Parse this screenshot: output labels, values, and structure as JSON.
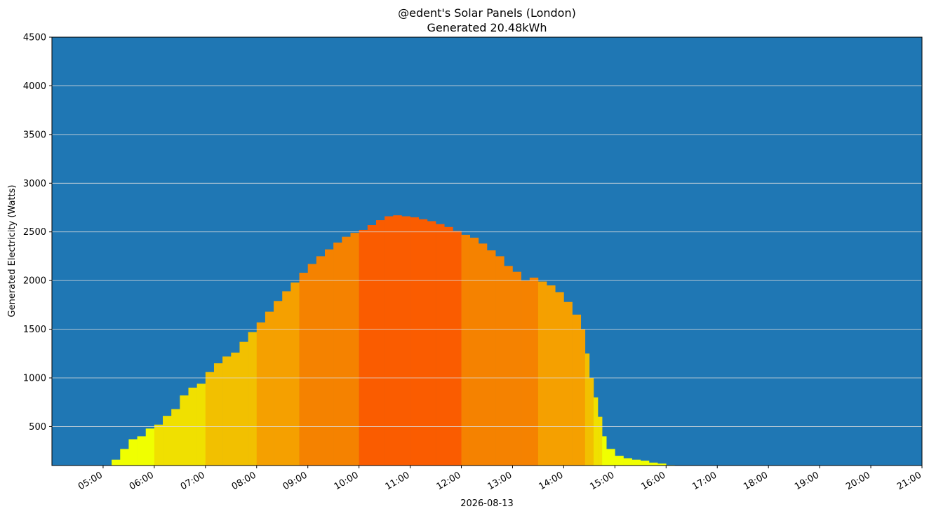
{
  "chart_data": {
    "type": "area",
    "title": "@edent's Solar Panels (London)",
    "subtitle": "Generated 20.48kWh",
    "ylabel": "Generated Electricity (Watts)",
    "xlabel": "2026-08-13",
    "ylim": [
      100,
      4500
    ],
    "xlim": [
      "04:00",
      "21:00"
    ],
    "yticks": [
      500,
      1000,
      1500,
      2000,
      2500,
      3000,
      3500,
      4000,
      4500
    ],
    "xticks": [
      "05:00",
      "06:00",
      "07:00",
      "08:00",
      "09:00",
      "10:00",
      "11:00",
      "12:00",
      "13:00",
      "14:00",
      "15:00",
      "16:00",
      "17:00",
      "18:00",
      "19:00",
      "20:00",
      "21:00"
    ],
    "grid": "horizontal",
    "background_color": "#1f77b4",
    "grid_color": "#dddddd",
    "band_colors": [
      {
        "min": 0,
        "max": 500,
        "color": "#f0ff00"
      },
      {
        "min": 500,
        "max": 1000,
        "color": "#f0e000"
      },
      {
        "min": 1000,
        "max": 1500,
        "color": "#f2c000"
      },
      {
        "min": 1500,
        "max": 2000,
        "color": "#f5a000"
      },
      {
        "min": 2000,
        "max": 2500,
        "color": "#f58200"
      },
      {
        "min": 2500,
        "max": 3000,
        "color": "#fa5c00"
      }
    ],
    "series": [
      {
        "x": [
          "05:10",
          "05:20",
          "05:30",
          "05:40",
          "05:50",
          "06:00",
          "06:10",
          "06:20",
          "06:30",
          "06:40",
          "06:50",
          "07:00",
          "07:10",
          "07:20",
          "07:30",
          "07:40",
          "07:50",
          "08:00",
          "08:10",
          "08:20",
          "08:30",
          "08:40",
          "08:50",
          "09:00",
          "09:10",
          "09:20",
          "09:30",
          "09:40",
          "09:50",
          "10:00",
          "10:10",
          "10:20",
          "10:30",
          "10:40",
          "10:50",
          "11:00",
          "11:10",
          "11:20",
          "11:30",
          "11:40",
          "11:50",
          "12:00",
          "12:10",
          "12:20",
          "12:30",
          "12:40",
          "12:50",
          "13:00",
          "13:10",
          "13:20",
          "13:30",
          "13:40",
          "13:50",
          "14:00",
          "14:10",
          "14:20",
          "14:25",
          "14:30",
          "14:35",
          "14:40",
          "14:45",
          "14:50",
          "15:00",
          "15:10",
          "15:20",
          "15:30",
          "15:40",
          "15:50",
          "16:00",
          "16:10",
          "16:20",
          "16:30",
          "16:40",
          "16:50",
          "17:00",
          "17:20",
          "17:40",
          "18:00",
          "18:10",
          "18:20"
        ],
        "values": [
          160,
          270,
          370,
          400,
          480,
          520,
          610,
          680,
          820,
          900,
          940,
          1060,
          1150,
          1220,
          1260,
          1370,
          1470,
          1570,
          1680,
          1790,
          1890,
          1980,
          2080,
          2170,
          2250,
          2320,
          2390,
          2450,
          2490,
          2520,
          2570,
          2620,
          2660,
          2670,
          2660,
          2650,
          2630,
          2610,
          2580,
          2550,
          2510,
          2470,
          2440,
          2380,
          2310,
          2250,
          2150,
          2090,
          2000,
          2030,
          1990,
          1950,
          1880,
          1780,
          1650,
          1500,
          1250,
          1000,
          800,
          600,
          400,
          270,
          200,
          175,
          160,
          150,
          130,
          120,
          105,
          100,
          0,
          0,
          0,
          0,
          0,
          0,
          0,
          0,
          0,
          0
        ]
      }
    ]
  }
}
